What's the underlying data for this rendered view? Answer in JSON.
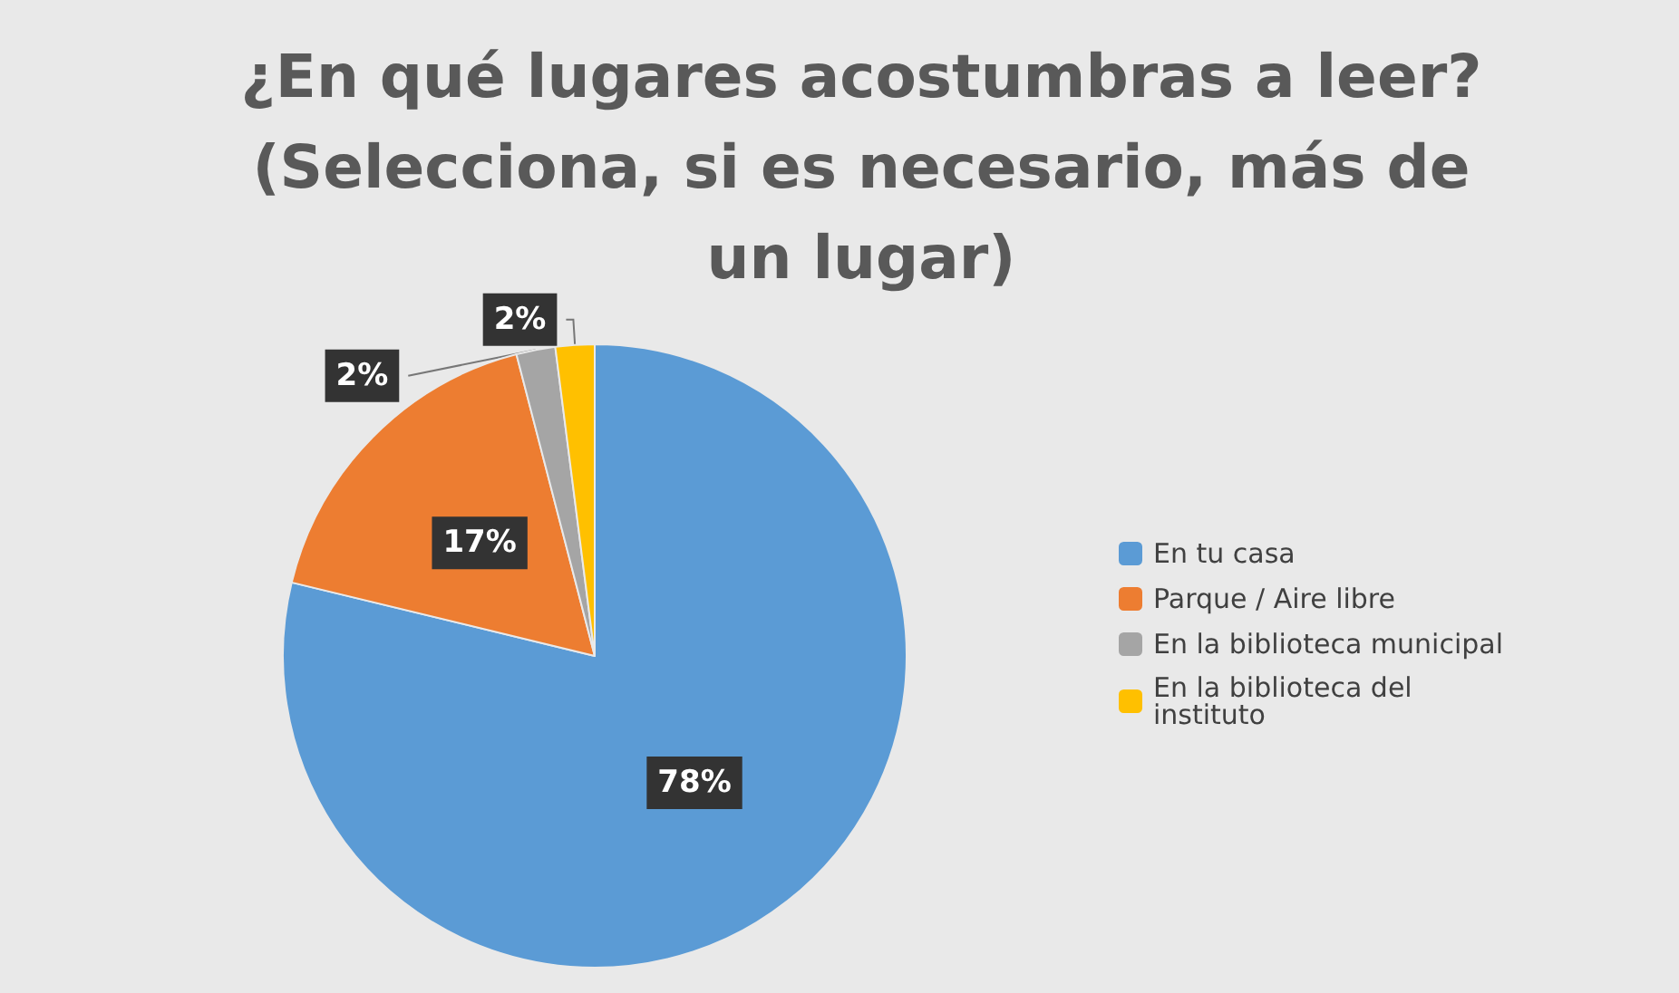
{
  "chart_data": {
    "type": "pie",
    "title": "¿En qué lugares acostumbras a leer? (Selecciona, si es necesario, más de un lugar)",
    "categories": [
      "En tu casa",
      "Parque / Aire libre",
      "En la biblioteca municipal",
      "En la biblioteca del instituto"
    ],
    "values": [
      78,
      17,
      2,
      2
    ],
    "value_labels": [
      "78%",
      "17%",
      "2%",
      "2%"
    ],
    "colors": [
      "#5b9bd5",
      "#ed7d31",
      "#a5a5a5",
      "#ffc000"
    ],
    "legend": "right"
  }
}
